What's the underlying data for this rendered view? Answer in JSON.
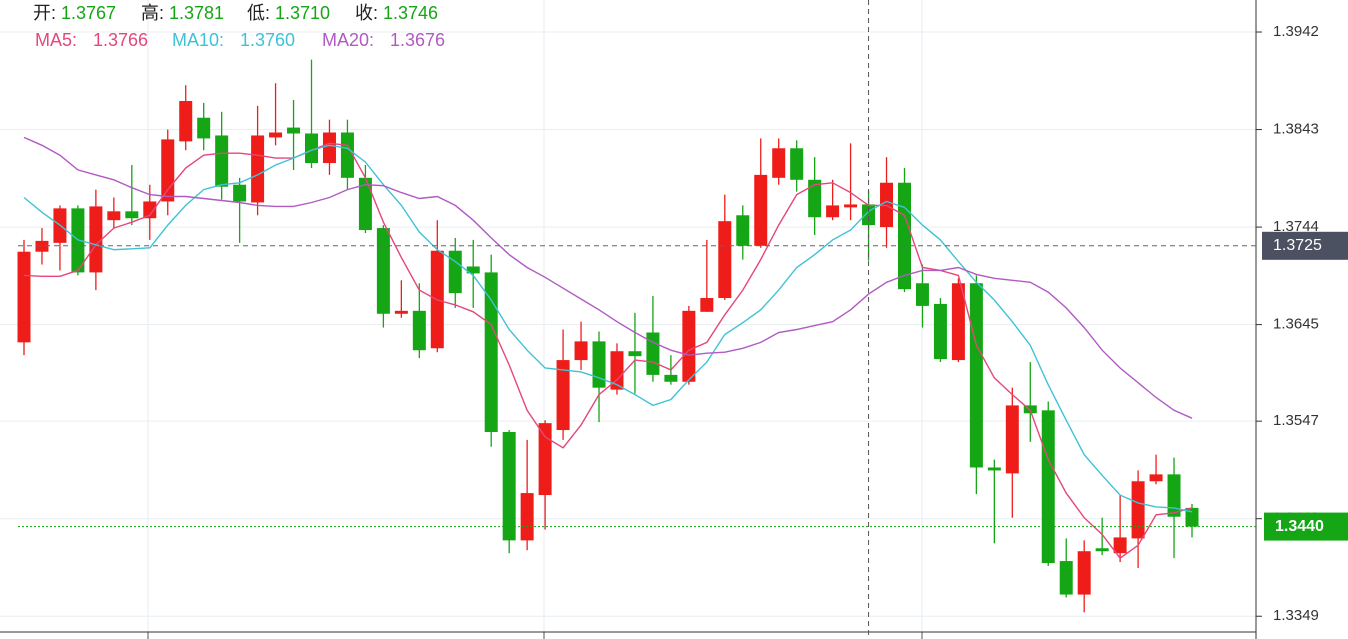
{
  "chart_data": {
    "type": "candlestick",
    "open": [
      1.3627,
      1.3719,
      1.3728,
      1.3763,
      1.3698,
      1.3751,
      1.376,
      1.3753,
      1.377,
      1.3831,
      1.3855,
      1.3837,
      1.3787,
      1.3769,
      1.3835,
      1.3845,
      1.3839,
      1.3809,
      1.384,
      1.3794,
      1.3743,
      1.3656,
      1.3659,
      1.3621,
      1.372,
      1.3704,
      1.3698,
      1.3536,
      1.3426,
      1.3472,
      1.3538,
      1.3609,
      1.3628,
      1.3579,
      1.3618,
      1.3637,
      1.3594,
      1.3587,
      1.3658,
      1.3672,
      1.3756,
      1.3725,
      1.3794,
      1.3824,
      1.3792,
      1.3754,
      1.3764,
      1.3767,
      1.3744,
      1.3789,
      1.3687,
      1.3666,
      1.3609,
      1.3687,
      1.35,
      1.3494,
      1.3563,
      1.3558,
      1.3405,
      1.3371,
      1.3418,
      1.3413,
      1.3428,
      1.3486,
      1.3493,
      1.3459
    ],
    "high": [
      1.3731,
      1.3743,
      1.3766,
      1.3766,
      1.3782,
      1.3774,
      1.3807,
      1.3787,
      1.3843,
      1.3888,
      1.387,
      1.3861,
      1.3794,
      1.3867,
      1.389,
      1.3873,
      1.3914,
      1.3853,
      1.3853,
      1.3807,
      1.3746,
      1.369,
      1.3687,
      1.3751,
      1.3733,
      1.3731,
      1.3716,
      1.3538,
      1.3528,
      1.3548,
      1.364,
      1.3648,
      1.3638,
      1.3626,
      1.3657,
      1.3674,
      1.3614,
      1.3664,
      1.3731,
      1.3777,
      1.3766,
      1.3834,
      1.3834,
      1.3832,
      1.3815,
      1.3792,
      1.3829,
      1.3781,
      1.3815,
      1.3804,
      1.3706,
      1.3672,
      1.3692,
      1.3695,
      1.3508,
      1.3581,
      1.3607,
      1.3567,
      1.3428,
      1.3426,
      1.3449,
      1.3472,
      1.3497,
      1.3513,
      1.351,
      1.3463
    ],
    "low": [
      1.3614,
      1.3706,
      1.37,
      1.3695,
      1.368,
      1.3743,
      1.3746,
      1.3731,
      1.3756,
      1.3822,
      1.3822,
      1.3772,
      1.3728,
      1.3756,
      1.3827,
      1.3802,
      1.3804,
      1.3797,
      1.3782,
      1.3738,
      1.3642,
      1.3652,
      1.3611,
      1.3617,
      1.3662,
      1.3662,
      1.3521,
      1.3413,
      1.3416,
      1.3437,
      1.3528,
      1.3599,
      1.3546,
      1.3574,
      1.3575,
      1.3587,
      1.3584,
      1.3584,
      1.3658,
      1.367,
      1.3711,
      1.3723,
      1.3787,
      1.378,
      1.3736,
      1.3751,
      1.3751,
      1.371,
      1.3723,
      1.3678,
      1.3642,
      1.3607,
      1.3607,
      1.3473,
      1.3423,
      1.3449,
      1.3526,
      1.34,
      1.3368,
      1.3353,
      1.3411,
      1.3404,
      1.3398,
      1.3483,
      1.3408,
      1.3429
    ],
    "close": [
      1.3719,
      1.373,
      1.3763,
      1.3698,
      1.3765,
      1.376,
      1.3753,
      1.377,
      1.3833,
      1.3872,
      1.3834,
      1.3785,
      1.377,
      1.3837,
      1.384,
      1.3839,
      1.3809,
      1.384,
      1.3794,
      1.3741,
      1.3656,
      1.3659,
      1.3619,
      1.372,
      1.3677,
      1.3697,
      1.3536,
      1.3426,
      1.3474,
      1.3545,
      1.3609,
      1.3628,
      1.3581,
      1.3618,
      1.3613,
      1.3594,
      1.3587,
      1.3659,
      1.3672,
      1.375,
      1.3725,
      1.3797,
      1.3824,
      1.3792,
      1.3754,
      1.3766,
      1.3767,
      1.3746,
      1.3789,
      1.3681,
      1.3664,
      1.361,
      1.3687,
      1.35,
      1.3497,
      1.3563,
      1.3555,
      1.3403,
      1.3371,
      1.3415,
      1.3415,
      1.3429,
      1.3486,
      1.3493,
      1.345,
      1.344
    ],
    "up_color": "#ef1d1a",
    "down_color": "#14a614",
    "series": [
      {
        "name": "MA5:",
        "color": "#e4477b",
        "values": [
          1.3695,
          1.3694,
          1.3694,
          1.37,
          1.3726,
          1.3743,
          1.3749,
          1.3756,
          1.3782,
          1.3804,
          1.3817,
          1.3819,
          1.3819,
          1.3817,
          1.3814,
          1.3814,
          1.3822,
          1.3829,
          1.3827,
          1.3794,
          1.3749,
          1.3713,
          1.368,
          1.367,
          1.3665,
          1.3658,
          1.3645,
          1.3604,
          1.3558,
          1.3531,
          1.352,
          1.3543,
          1.3574,
          1.3589,
          1.3609,
          1.3607,
          1.3599,
          1.3619,
          1.3627,
          1.3655,
          1.368,
          1.3711,
          1.3746,
          1.3777,
          1.3787,
          1.3789,
          1.3779,
          1.3766,
          1.3766,
          1.3756,
          1.3703,
          1.37,
          1.3695,
          1.3624,
          1.3591,
          1.3574,
          1.3558,
          1.3508,
          1.3474,
          1.3449,
          1.3432,
          1.3408,
          1.3421,
          1.3452,
          1.3454,
          1.3459
        ]
      },
      {
        "name": "MA10:",
        "color": "#3fc2d6",
        "values": [
          1.3774,
          1.3759,
          1.3746,
          1.3731,
          1.3726,
          1.3721,
          1.3722,
          1.3723,
          1.3746,
          1.3766,
          1.3782,
          1.3787,
          1.3789,
          1.3797,
          1.3807,
          1.3814,
          1.3822,
          1.3827,
          1.3824,
          1.381,
          1.3787,
          1.3766,
          1.3739,
          1.3721,
          1.3709,
          1.3695,
          1.367,
          1.364,
          1.3619,
          1.3601,
          1.3599,
          1.3597,
          1.3591,
          1.3584,
          1.3574,
          1.3563,
          1.3569,
          1.3589,
          1.3607,
          1.3635,
          1.3647,
          1.366,
          1.368,
          1.3703,
          1.3716,
          1.3731,
          1.3741,
          1.376,
          1.377,
          1.3764,
          1.3746,
          1.3731,
          1.3709,
          1.3688,
          1.367,
          1.3648,
          1.3624,
          1.3584,
          1.3548,
          1.3513,
          1.3492,
          1.3472,
          1.3464,
          1.346,
          1.3459,
          1.3455
        ]
      },
      {
        "name": "MA20:",
        "color": "#b05ac2",
        "values": [
          1.3835,
          1.3827,
          1.3817,
          1.3802,
          1.3797,
          1.3792,
          1.3784,
          1.3777,
          1.3775,
          1.3775,
          1.3773,
          1.3771,
          1.3769,
          1.3766,
          1.3765,
          1.3765,
          1.3769,
          1.3774,
          1.3782,
          1.3787,
          1.3786,
          1.3779,
          1.3773,
          1.3775,
          1.3766,
          1.3751,
          1.3733,
          1.3716,
          1.3703,
          1.3693,
          1.3682,
          1.3671,
          1.366,
          1.3648,
          1.3637,
          1.3627,
          1.3619,
          1.3614,
          1.3616,
          1.3617,
          1.3621,
          1.3627,
          1.3637,
          1.364,
          1.3644,
          1.3648,
          1.366,
          1.3676,
          1.3688,
          1.3695,
          1.37,
          1.37,
          1.3703,
          1.3696,
          1.3692,
          1.369,
          1.3688,
          1.3678,
          1.3662,
          1.3642,
          1.3619,
          1.3601,
          1.3586,
          1.3571,
          1.3558,
          1.355
        ]
      }
    ],
    "ylim": [
      1.3333,
      1.39745
    ],
    "yticks": [
      1.3349,
      1.3448,
      1.3547,
      1.3645,
      1.3744,
      1.3843,
      1.3942
    ],
    "grid": true,
    "last_price": {
      "value": 1.344,
      "label": "1.3440"
    },
    "crosshair": {
      "index": 47,
      "price": 1.3725
    },
    "readout": {
      "labels": [
        "开:",
        "高:",
        "低:",
        "收:"
      ],
      "value_labels": [
        "1.3767",
        "1.3781",
        "1.3710",
        "1.3746"
      ],
      "ma_value_labels": [
        "1.3766",
        "1.3760",
        "1.3676"
      ]
    }
  }
}
